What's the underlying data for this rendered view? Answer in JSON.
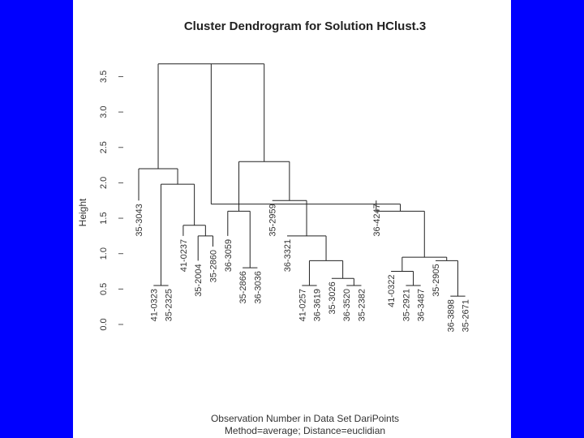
{
  "colors": {
    "background": "#0000ff",
    "panel": "#ffffff",
    "ink": "#222222"
  },
  "chart_data": {
    "type": "dendrogram",
    "title": "Cluster Dendrogram for Solution HClust.3",
    "ylabel": "Height",
    "xlabel_line1": "Observation Number in Data Set DariPoints",
    "xlabel_line2": "Method=average; Distance=euclidian",
    "yticks": [
      "0.0",
      "0.5",
      "1.0",
      "1.5",
      "2.0",
      "2.5",
      "3.0",
      "3.5"
    ],
    "ylim": [
      0,
      3.7
    ],
    "leaves": [
      "35-3043",
      "41-0323",
      "35-2325",
      "41-0237",
      "35-2004",
      "35-2860",
      "36-3059",
      "35-2866",
      "36-3036",
      "35-2959",
      "36-3321",
      "41-0257",
      "36-3619",
      "35-3026",
      "36-3520",
      "35-2382",
      "36-4247",
      "41-0322",
      "35-2921",
      "36-3487",
      "35-2905",
      "36-3898",
      "35-2671"
    ],
    "leaf_heights": [
      1.75,
      0.55,
      0.55,
      1.25,
      0.9,
      1.1,
      1.25,
      0.8,
      0.8,
      1.75,
      1.25,
      0.55,
      0.55,
      0.65,
      0.55,
      0.55,
      1.75,
      0.75,
      0.55,
      0.55,
      0.9,
      0.4,
      0.4
    ],
    "merges": [
      {
        "id": "m1",
        "left": 1,
        "right": 2,
        "height": 0.55
      },
      {
        "id": "m2",
        "left": 4,
        "right": 5,
        "height": 1.25
      },
      {
        "id": "m3",
        "left": 3,
        "right": "m2",
        "height": 1.4
      },
      {
        "id": "m4",
        "left": "m1",
        "right": "m3",
        "height": 1.98
      },
      {
        "id": "m5",
        "left": 0,
        "right": "m4",
        "height": 2.2
      },
      {
        "id": "m6",
        "left": 7,
        "right": 8,
        "height": 0.8
      },
      {
        "id": "m7",
        "left": 6,
        "right": "m6",
        "height": 1.6
      },
      {
        "id": "m8",
        "left": 11,
        "right": 12,
        "height": 0.55
      },
      {
        "id": "m9",
        "left": 14,
        "right": 15,
        "height": 0.55
      },
      {
        "id": "m10",
        "left": 13,
        "right": "m9",
        "height": 0.65
      },
      {
        "id": "m11",
        "left": "m8",
        "right": "m10",
        "height": 0.9
      },
      {
        "id": "m12",
        "left": 10,
        "right": "m11",
        "height": 1.25
      },
      {
        "id": "m13",
        "left": 9,
        "right": "m12",
        "height": 1.75
      },
      {
        "id": "m14",
        "left": "m7",
        "right": "m13",
        "height": 2.3
      },
      {
        "id": "m15",
        "left": "m5",
        "right": "m14",
        "height": 3.68
      },
      {
        "id": "m16",
        "left": 18,
        "right": 19,
        "height": 0.55
      },
      {
        "id": "m17",
        "left": 17,
        "right": "m16",
        "height": 0.75
      },
      {
        "id": "m18",
        "left": 21,
        "right": 22,
        "height": 0.4
      },
      {
        "id": "m19",
        "left": 20,
        "right": "m18",
        "height": 0.9
      },
      {
        "id": "m20",
        "left": "m17",
        "right": "m19",
        "height": 0.95
      },
      {
        "id": "m21",
        "left": 16,
        "right": "m20",
        "height": 1.6
      },
      {
        "id": "m22",
        "left": "m15",
        "right": "m21",
        "height": 1.7
      }
    ],
    "grid": false,
    "legend": "none"
  }
}
